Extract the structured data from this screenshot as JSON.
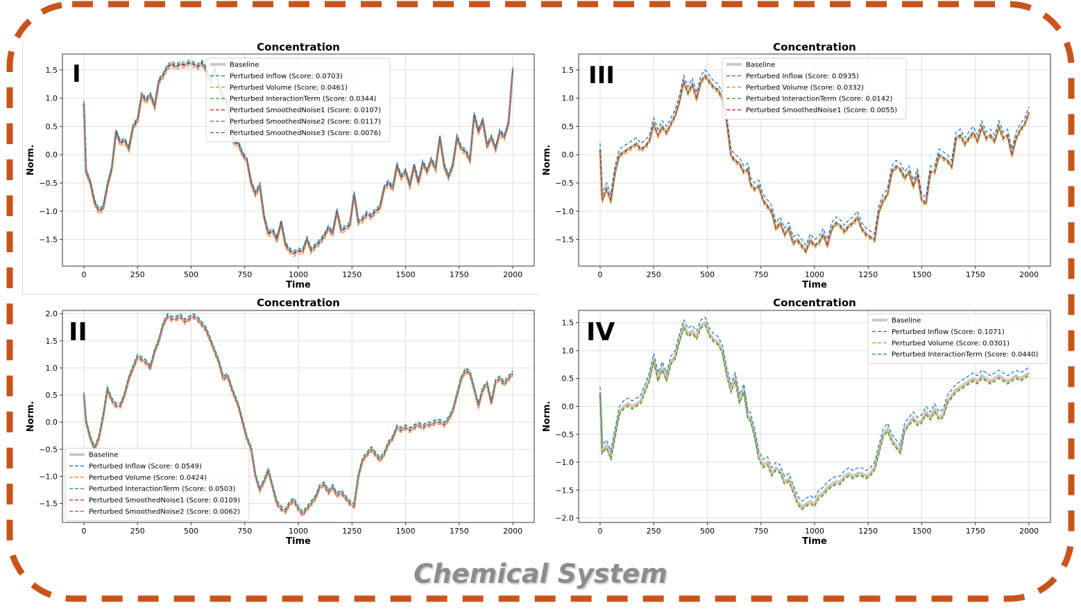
{
  "footer": "Chemical System",
  "colors": {
    "baseline": "#c8c8c8",
    "frame": "#c8541c",
    "series": [
      "#1f77b4",
      "#ff7f0e",
      "#2ca02c",
      "#d62728",
      "#9467bd",
      "#8c564b"
    ]
  },
  "chart_data": [
    {
      "type": "line",
      "panel_label": "I",
      "title": "Concentration",
      "xlabel": "Time",
      "ylabel": "Norm.",
      "xlim": [
        -100,
        2100
      ],
      "ylim": [
        -1.97,
        1.78
      ],
      "xticks": [
        0,
        250,
        500,
        750,
        1000,
        1250,
        1500,
        1750,
        2000
      ],
      "yticks": [
        1.5,
        1.0,
        0.5,
        0.0,
        -0.5,
        -1.0,
        -1.5
      ],
      "grid": true,
      "legend_position": "top-center",
      "legend": [
        "Baseline",
        "Perturbed Inflow (Score: 0.0703)",
        "Perturbed Volume (Score: 0.0461)",
        "Perturbed InteractionTerm (Score: 0.0344)",
        "Perturbed SmoothedNoise1 (Score: 0.0107)",
        "Perturbed SmoothedNoise2 (Score: 0.0117)",
        "Perturbed SmoothedNoise3 (Score: 0.0076)"
      ],
      "baseline": {
        "x": [
          0,
          10,
          30,
          50,
          70,
          90,
          110,
          130,
          150,
          170,
          190,
          210,
          230,
          250,
          270,
          290,
          310,
          330,
          350,
          370,
          390,
          410,
          430,
          450,
          470,
          490,
          510,
          530,
          550,
          570,
          590,
          610,
          630,
          650,
          670,
          690,
          700,
          720,
          740,
          760,
          780,
          800,
          820,
          840,
          860,
          880,
          900,
          920,
          940,
          960,
          980,
          1000,
          1020,
          1040,
          1060,
          1080,
          1100,
          1120,
          1140,
          1160,
          1180,
          1200,
          1220,
          1240,
          1260,
          1280,
          1300,
          1320,
          1340,
          1360,
          1380,
          1400,
          1420,
          1440,
          1460,
          1480,
          1500,
          1520,
          1540,
          1560,
          1580,
          1600,
          1620,
          1640,
          1660,
          1680,
          1700,
          1720,
          1740,
          1760,
          1780,
          1800,
          1820,
          1840,
          1860,
          1880,
          1900,
          1920,
          1940,
          1960,
          1980,
          2000
        ],
        "y": [
          0.9,
          -0.3,
          -0.5,
          -0.85,
          -1.0,
          -0.95,
          -0.55,
          -0.25,
          0.4,
          0.2,
          0.25,
          0.1,
          0.5,
          0.6,
          1.05,
          0.95,
          1.05,
          0.85,
          1.3,
          1.4,
          1.55,
          1.6,
          1.55,
          1.6,
          1.58,
          1.62,
          1.6,
          1.55,
          1.62,
          1.5,
          1.3,
          1.5,
          1.2,
          1.0,
          0.9,
          0.4,
          0.2,
          0.2,
          0.0,
          -0.1,
          -0.5,
          -0.7,
          -0.55,
          -1.1,
          -1.4,
          -1.35,
          -1.5,
          -1.2,
          -1.6,
          -1.7,
          -1.75,
          -1.7,
          -1.72,
          -1.5,
          -1.7,
          -1.62,
          -1.55,
          -1.45,
          -1.3,
          -1.4,
          -1.0,
          -1.35,
          -1.3,
          -1.25,
          -0.7,
          -1.2,
          -1.15,
          -1.05,
          -1.1,
          -1.0,
          -0.95,
          -0.6,
          -0.5,
          -0.6,
          -0.2,
          -0.4,
          -0.3,
          -0.55,
          -0.2,
          -0.5,
          -0.15,
          -0.3,
          -0.1,
          -0.25,
          0.3,
          -0.2,
          -0.4,
          -0.2,
          0.3,
          0.1,
          0.05,
          -0.1,
          0.7,
          0.4,
          0.6,
          0.15,
          0.3,
          0.1,
          0.4,
          0.3,
          0.55,
          1.5
        ]
      },
      "series_deltas": [
        0.05,
        -0.05,
        0.02,
        0.0,
        -0.01,
        0.01
      ]
    },
    {
      "type": "line",
      "panel_label": "III",
      "title": "Concentration",
      "xlabel": "Time",
      "ylabel": "Norm.",
      "xlim": [
        -100,
        2100
      ],
      "ylim": [
        -1.97,
        1.78
      ],
      "xticks": [
        0,
        250,
        500,
        750,
        1000,
        1250,
        1500,
        1750,
        2000
      ],
      "yticks": [
        1.5,
        1.0,
        0.5,
        0.0,
        -0.5,
        -1.0,
        -1.5
      ],
      "grid": true,
      "legend_position": "top-center",
      "legend": [
        "Baseline",
        "Perturbed Inflow (Score: 0.0935)",
        "Perturbed Volume (Score: 0.0332)",
        "Perturbed InteractionTerm (Score: 0.0142)",
        "Perturbed SmoothedNoise1 (Score: 0.0055)"
      ],
      "baseline": {
        "x": [
          0,
          10,
          30,
          50,
          70,
          90,
          110,
          130,
          150,
          170,
          190,
          210,
          230,
          250,
          270,
          290,
          310,
          330,
          350,
          370,
          390,
          410,
          430,
          450,
          470,
          490,
          510,
          530,
          550,
          570,
          590,
          610,
          630,
          650,
          670,
          690,
          700,
          720,
          740,
          760,
          780,
          800,
          820,
          840,
          860,
          880,
          900,
          920,
          940,
          960,
          980,
          1000,
          1020,
          1040,
          1060,
          1080,
          1100,
          1120,
          1140,
          1160,
          1180,
          1200,
          1220,
          1240,
          1260,
          1280,
          1300,
          1320,
          1340,
          1360,
          1380,
          1400,
          1420,
          1440,
          1460,
          1480,
          1500,
          1520,
          1540,
          1560,
          1580,
          1600,
          1620,
          1640,
          1660,
          1680,
          1700,
          1720,
          1740,
          1760,
          1780,
          1800,
          1820,
          1840,
          1860,
          1880,
          1900,
          1920,
          1940,
          1960,
          1980,
          2000
        ],
        "y": [
          0.1,
          -0.8,
          -0.6,
          -0.8,
          -0.3,
          0.0,
          0.05,
          0.1,
          0.15,
          0.2,
          0.1,
          0.15,
          0.25,
          0.55,
          0.35,
          0.5,
          0.4,
          0.55,
          0.7,
          0.95,
          1.3,
          1.1,
          1.25,
          1.0,
          1.3,
          1.4,
          1.3,
          1.2,
          1.15,
          1.0,
          0.6,
          0.0,
          -0.1,
          -0.15,
          -0.3,
          -0.25,
          -0.5,
          -0.6,
          -0.55,
          -0.8,
          -0.9,
          -1.0,
          -1.3,
          -1.2,
          -1.4,
          -1.3,
          -1.55,
          -1.5,
          -1.6,
          -1.7,
          -1.5,
          -1.6,
          -1.55,
          -1.4,
          -1.6,
          -1.3,
          -1.2,
          -1.25,
          -1.35,
          -1.25,
          -1.2,
          -1.1,
          -1.3,
          -1.4,
          -1.45,
          -1.5,
          -1.0,
          -0.8,
          -0.7,
          -0.3,
          -0.2,
          -0.25,
          -0.4,
          -0.3,
          -0.55,
          -0.35,
          -0.8,
          -0.85,
          -0.3,
          -0.3,
          0.0,
          -0.05,
          -0.1,
          -0.2,
          0.3,
          0.35,
          0.2,
          0.3,
          0.4,
          0.25,
          0.5,
          0.3,
          0.35,
          0.25,
          0.5,
          0.3,
          0.35,
          0.0,
          0.3,
          0.45,
          0.55,
          0.75
        ]
      },
      "series_deltas": [
        0.1,
        -0.05,
        -0.02,
        0.0
      ]
    },
    {
      "type": "line",
      "panel_label": "II",
      "title": "Concentration",
      "xlabel": "Time",
      "ylabel": "Norm.",
      "xlim": [
        -100,
        2100
      ],
      "ylim": [
        -1.85,
        2.06
      ],
      "xticks": [
        0,
        250,
        500,
        750,
        1000,
        1250,
        1500,
        1750,
        2000
      ],
      "yticks": [
        2.0,
        1.5,
        1.0,
        0.5,
        0.0,
        -0.5,
        -1.0,
        -1.5
      ],
      "grid": true,
      "legend_position": "lower-left",
      "legend": [
        "Baseline",
        "Perturbed Inflow (Score: 0.0549)",
        "Perturbed Volume (Score: 0.0424)",
        "Perturbed InteractionTerm (Score: 0.0503)",
        "Perturbed SmoothedNoise1 (Score: 0.0109)",
        "Perturbed SmoothedNoise2 (Score: 0.0062)"
      ],
      "baseline": {
        "x": [
          0,
          10,
          30,
          50,
          70,
          90,
          110,
          130,
          150,
          170,
          190,
          210,
          230,
          250,
          270,
          290,
          310,
          330,
          350,
          370,
          390,
          410,
          430,
          450,
          470,
          490,
          510,
          530,
          550,
          570,
          590,
          610,
          630,
          650,
          670,
          690,
          700,
          720,
          740,
          760,
          780,
          800,
          820,
          840,
          860,
          880,
          900,
          920,
          940,
          960,
          980,
          1000,
          1020,
          1040,
          1060,
          1080,
          1100,
          1120,
          1140,
          1160,
          1180,
          1200,
          1220,
          1240,
          1260,
          1280,
          1300,
          1320,
          1340,
          1360,
          1380,
          1400,
          1420,
          1440,
          1460,
          1480,
          1500,
          1520,
          1540,
          1560,
          1580,
          1600,
          1620,
          1640,
          1660,
          1680,
          1700,
          1720,
          1740,
          1760,
          1780,
          1800,
          1820,
          1840,
          1860,
          1880,
          1900,
          1920,
          1940,
          1960,
          1980,
          2000
        ],
        "y": [
          0.5,
          0.0,
          -0.3,
          -0.5,
          -0.3,
          0.1,
          0.6,
          0.4,
          0.3,
          0.3,
          0.5,
          0.8,
          1.0,
          1.2,
          1.15,
          1.1,
          1.0,
          1.3,
          1.5,
          1.8,
          1.95,
          1.9,
          1.9,
          1.95,
          1.85,
          1.9,
          1.95,
          1.9,
          1.8,
          1.7,
          1.5,
          1.3,
          1.1,
          0.8,
          0.85,
          0.6,
          0.5,
          0.3,
          0.0,
          -0.3,
          -0.5,
          -1.0,
          -1.25,
          -1.1,
          -0.9,
          -1.2,
          -1.5,
          -1.6,
          -1.65,
          -1.5,
          -1.45,
          -1.6,
          -1.7,
          -1.6,
          -1.5,
          -1.4,
          -1.2,
          -1.15,
          -1.3,
          -1.2,
          -1.35,
          -1.3,
          -1.4,
          -1.5,
          -1.55,
          -1.0,
          -0.7,
          -0.6,
          -0.5,
          -0.6,
          -0.7,
          -0.6,
          -0.4,
          -0.3,
          -0.1,
          -0.15,
          -0.1,
          -0.15,
          -0.1,
          -0.05,
          -0.1,
          -0.05,
          -0.05,
          0.0,
          0.0,
          -0.05,
          0.05,
          0.2,
          0.5,
          0.8,
          0.95,
          0.9,
          0.6,
          0.3,
          0.6,
          0.7,
          0.35,
          0.75,
          0.8,
          0.7,
          0.8,
          0.9
        ]
      },
      "series_deltas": [
        0.05,
        -0.04,
        0.04,
        0.0,
        -0.01
      ]
    },
    {
      "type": "line",
      "panel_label": "IV",
      "title": "Concentration",
      "xlabel": "Time",
      "ylabel": "Norm.",
      "xlim": [
        -100,
        2100
      ],
      "ylim": [
        -2.08,
        1.72
      ],
      "xticks": [
        0,
        250,
        500,
        750,
        1000,
        1250,
        1500,
        1750,
        2000
      ],
      "yticks": [
        1.5,
        1.0,
        0.5,
        0.0,
        -0.5,
        -1.0,
        -1.5,
        -2.0
      ],
      "grid": true,
      "legend_position": "top-right",
      "legend": [
        "Baseline",
        "Perturbed Inflow (Score: 0.1071)",
        "Perturbed Volume (Score: 0.0301)",
        "Perturbed InteractionTerm (Score: 0.0440)"
      ],
      "baseline": {
        "x": [
          0,
          10,
          30,
          50,
          70,
          90,
          110,
          130,
          150,
          170,
          190,
          210,
          230,
          250,
          270,
          290,
          310,
          330,
          350,
          370,
          390,
          410,
          430,
          450,
          470,
          490,
          510,
          530,
          550,
          570,
          590,
          610,
          630,
          650,
          670,
          690,
          700,
          720,
          740,
          760,
          780,
          800,
          820,
          840,
          860,
          880,
          900,
          920,
          940,
          960,
          980,
          1000,
          1020,
          1040,
          1060,
          1080,
          1100,
          1120,
          1140,
          1160,
          1180,
          1200,
          1220,
          1240,
          1260,
          1280,
          1300,
          1320,
          1340,
          1360,
          1380,
          1400,
          1420,
          1440,
          1460,
          1480,
          1500,
          1520,
          1540,
          1560,
          1580,
          1600,
          1620,
          1640,
          1660,
          1680,
          1700,
          1720,
          1740,
          1760,
          1780,
          1800,
          1820,
          1840,
          1860,
          1880,
          1900,
          1920,
          1940,
          1960,
          1980,
          2000
        ],
        "y": [
          0.25,
          -0.8,
          -0.7,
          -0.9,
          -0.5,
          -0.1,
          0.0,
          0.05,
          0.0,
          0.05,
          0.1,
          0.3,
          0.5,
          0.85,
          0.5,
          0.7,
          0.5,
          0.8,
          0.9,
          1.2,
          1.45,
          1.3,
          1.35,
          1.25,
          1.45,
          1.5,
          1.3,
          1.2,
          1.15,
          1.0,
          0.6,
          0.3,
          0.5,
          0.1,
          0.3,
          -0.2,
          -0.2,
          -0.5,
          -0.9,
          -1.05,
          -1.0,
          -1.2,
          -1.1,
          -1.15,
          -1.35,
          -1.3,
          -1.5,
          -1.7,
          -1.8,
          -1.75,
          -1.7,
          -1.75,
          -1.6,
          -1.55,
          -1.45,
          -1.4,
          -1.35,
          -1.35,
          -1.25,
          -1.2,
          -1.25,
          -1.2,
          -1.2,
          -1.25,
          -1.2,
          -1.1,
          -0.8,
          -0.5,
          -0.4,
          -0.6,
          -0.7,
          -0.8,
          -0.4,
          -0.3,
          -0.2,
          -0.3,
          -0.25,
          -0.1,
          -0.2,
          -0.05,
          -0.2,
          -0.15,
          0.1,
          0.2,
          0.3,
          0.35,
          0.4,
          0.45,
          0.5,
          0.45,
          0.55,
          0.5,
          0.45,
          0.5,
          0.55,
          0.5,
          0.45,
          0.5,
          0.55,
          0.5,
          0.55,
          0.6
        ]
      },
      "series_deltas": [
        0.1,
        -0.03,
        -0.05
      ]
    }
  ]
}
